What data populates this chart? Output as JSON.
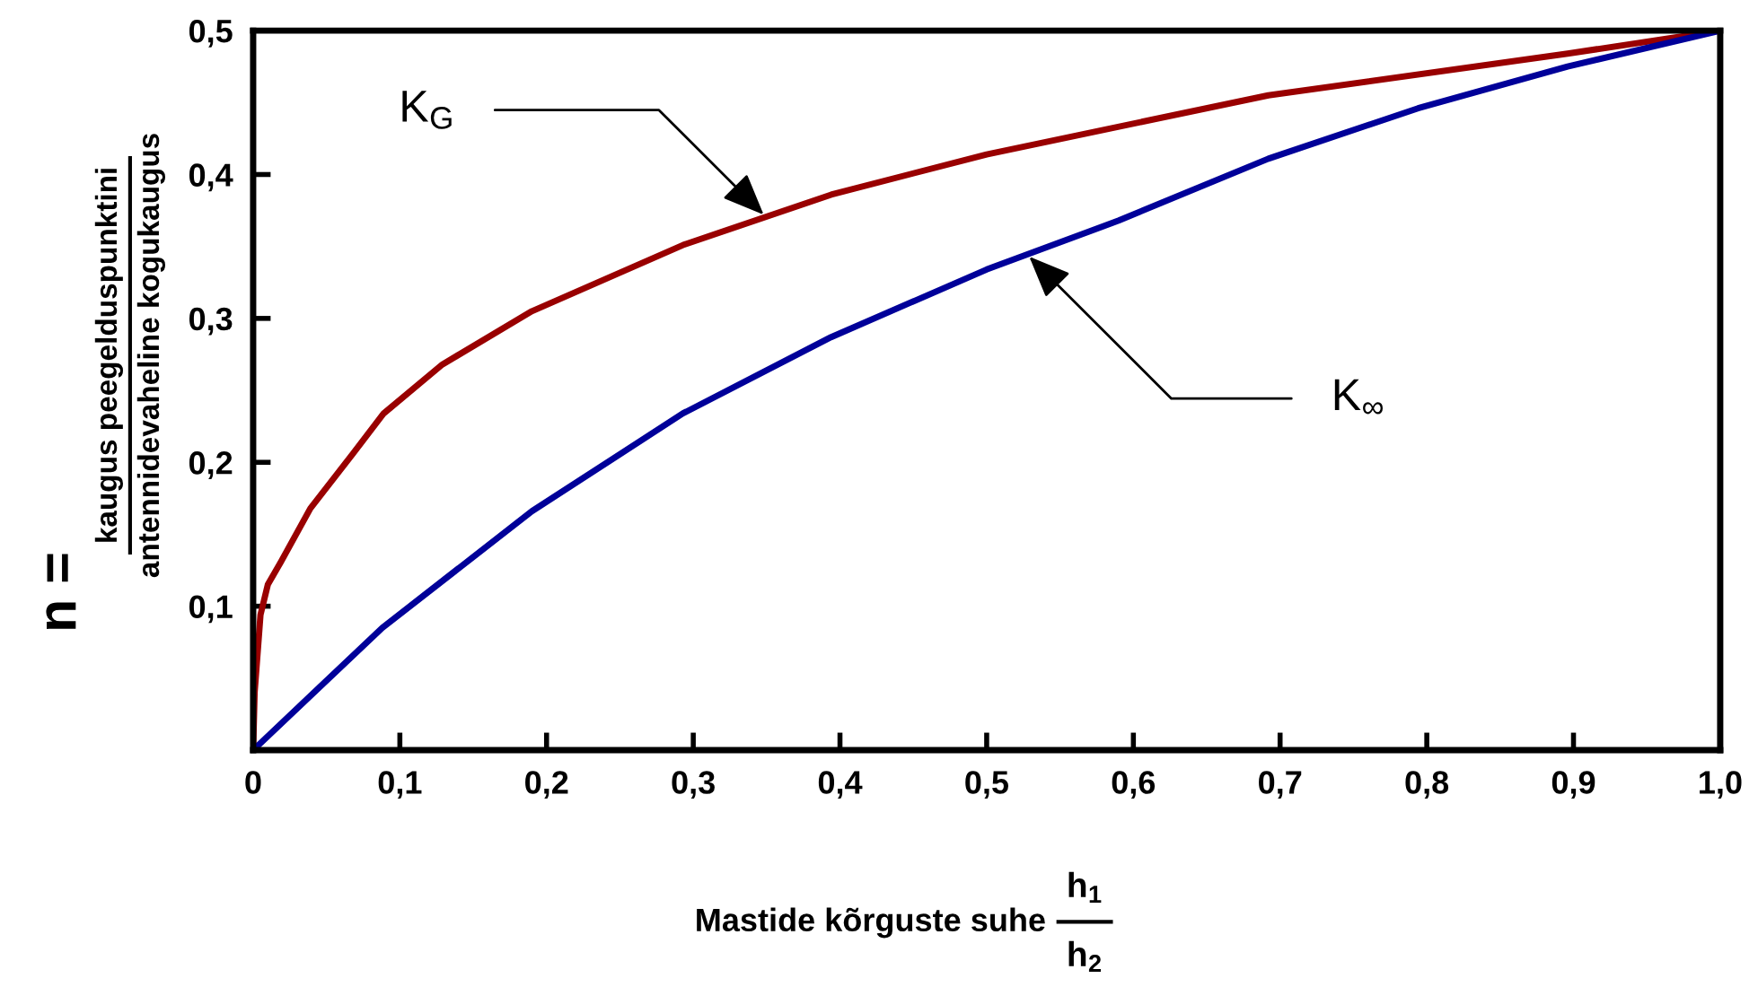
{
  "chart_data": {
    "type": "line",
    "xlabel": "Mastide kõrguste suhe",
    "ylabel": "n =",
    "series": [
      {
        "color": "#990000",
        "x": [
          0,
          0.001,
          0.005,
          0.01,
          0.019,
          0.039,
          0.068,
          0.089,
          0.129,
          0.19,
          0.293,
          0.394,
          0.5,
          0.692,
          0.896,
          1.0
        ],
        "values": [
          0,
          0.04,
          0.094,
          0.115,
          0.131,
          0.168,
          0.206,
          0.234,
          0.268,
          0.305,
          0.351,
          0.386,
          0.414,
          0.455,
          0.484,
          0.5
        ]
      },
      {
        "color": "#000099",
        "x": [
          0,
          0.088,
          0.19,
          0.293,
          0.394,
          0.5,
          0.59,
          0.692,
          0.794,
          0.896,
          1.0
        ],
        "values": [
          0,
          0.085,
          0.166,
          0.234,
          0.287,
          0.334,
          0.368,
          0.411,
          0.446,
          0.475,
          0.5
        ]
      }
    ],
    "annotations": [
      "kaugus peegelduspunktini",
      "antennidevaheline kogukaugus",
      "h$_{1}$",
      "h$_{2}$",
      {
        "text": "K$_{G}$",
        "x": 0.348,
        "y": 0.372
      },
      {
        "text": "K$_{∞}$",
        "x": 0.529,
        "y": 0.343
      }
    ],
    "xlim": [
      0,
      1.0
    ],
    "ylim": [
      0,
      0.5
    ],
    "xticks": [
      0,
      {
        "value": 0.1,
        "label": "0,1"
      },
      {
        "value": 0.2,
        "label": "0,2"
      },
      {
        "value": 0.3,
        "label": "0,3"
      },
      {
        "value": 0.4,
        "label": "0,4"
      },
      {
        "value": 0.5,
        "label": "0,5"
      },
      {
        "value": 0.6,
        "label": "0,6"
      },
      {
        "value": 0.7,
        "label": "0,7"
      },
      {
        "value": 0.8,
        "label": "0,8"
      },
      {
        "value": 0.9,
        "label": "0,9"
      },
      {
        "value": 1.0,
        "label": "1,0"
      }
    ],
    "yticks": [
      {
        "value": 0.1,
        "label": "0,1"
      },
      {
        "value": 0.2,
        "label": "0,2"
      },
      {
        "value": 0.3,
        "label": "0,3"
      },
      {
        "value": 0.4,
        "label": "0,4"
      },
      {
        "value": 0.5,
        "label": "0,5"
      }
    ],
    "grid": false,
    "legend": false,
    "marker": "none",
    "line_style": "solid"
  }
}
